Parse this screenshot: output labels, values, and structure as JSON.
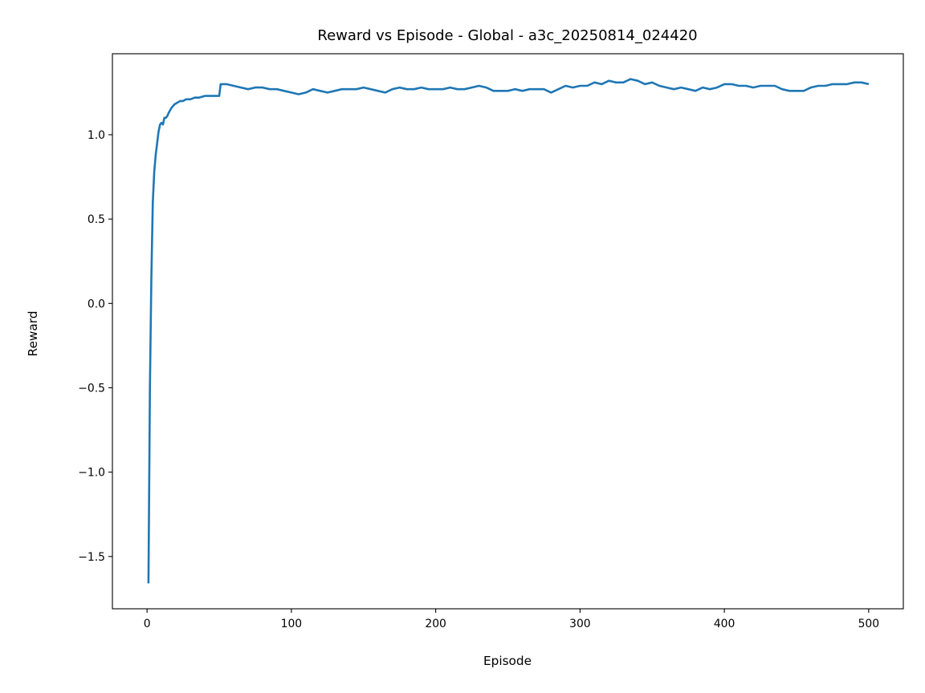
{
  "chart_data": {
    "type": "line",
    "title": "Reward vs Episode - Global - a3c_20250814_024420",
    "xlabel": "Episode",
    "ylabel": "Reward",
    "xlim": [
      -24,
      524
    ],
    "ylim": [
      -1.81,
      1.48
    ],
    "xticks": [
      0,
      100,
      200,
      300,
      400,
      500
    ],
    "xtick_labels": [
      "0",
      "100",
      "200",
      "300",
      "400",
      "500"
    ],
    "yticks": [
      -1.5,
      -1.0,
      -0.5,
      0.0,
      0.5,
      1.0
    ],
    "ytick_labels": [
      "−1.5",
      "−1.0",
      "−0.5",
      "0.0",
      "0.5",
      "1.0"
    ],
    "grid": false,
    "series": [
      {
        "color": "#1f77b4",
        "x": [
          1,
          2,
          3,
          4,
          5,
          6,
          7,
          8,
          9,
          10,
          11,
          12,
          13,
          14,
          15,
          17,
          19,
          21,
          23,
          25,
          27,
          30,
          33,
          36,
          40,
          45,
          50,
          51,
          52,
          55,
          60,
          65,
          70,
          75,
          80,
          85,
          90,
          95,
          100,
          105,
          110,
          115,
          120,
          125,
          130,
          135,
          140,
          145,
          150,
          155,
          160,
          165,
          170,
          175,
          180,
          185,
          190,
          195,
          200,
          205,
          210,
          215,
          220,
          225,
          230,
          235,
          240,
          245,
          250,
          255,
          260,
          265,
          270,
          275,
          280,
          285,
          290,
          295,
          300,
          305,
          310,
          315,
          320,
          325,
          330,
          335,
          340,
          345,
          350,
          355,
          360,
          365,
          370,
          375,
          380,
          385,
          390,
          395,
          400,
          405,
          410,
          415,
          420,
          425,
          430,
          435,
          440,
          445,
          450,
          455,
          460,
          465,
          470,
          475,
          480,
          485,
          490,
          495,
          500
        ],
        "y": [
          -1.66,
          -0.5,
          0.15,
          0.6,
          0.78,
          0.88,
          0.95,
          1.02,
          1.06,
          1.07,
          1.06,
          1.1,
          1.1,
          1.11,
          1.13,
          1.16,
          1.18,
          1.19,
          1.2,
          1.2,
          1.21,
          1.21,
          1.22,
          1.22,
          1.23,
          1.23,
          1.23,
          1.3,
          1.3,
          1.3,
          1.29,
          1.28,
          1.27,
          1.28,
          1.28,
          1.27,
          1.27,
          1.26,
          1.25,
          1.24,
          1.25,
          1.27,
          1.26,
          1.25,
          1.26,
          1.27,
          1.27,
          1.27,
          1.28,
          1.27,
          1.26,
          1.25,
          1.27,
          1.28,
          1.27,
          1.27,
          1.28,
          1.27,
          1.27,
          1.27,
          1.28,
          1.27,
          1.27,
          1.28,
          1.29,
          1.28,
          1.26,
          1.26,
          1.26,
          1.27,
          1.26,
          1.27,
          1.27,
          1.27,
          1.25,
          1.27,
          1.29,
          1.28,
          1.29,
          1.29,
          1.31,
          1.3,
          1.32,
          1.31,
          1.31,
          1.33,
          1.32,
          1.3,
          1.31,
          1.29,
          1.28,
          1.27,
          1.28,
          1.27,
          1.26,
          1.28,
          1.27,
          1.28,
          1.3,
          1.3,
          1.29,
          1.29,
          1.28,
          1.29,
          1.29,
          1.29,
          1.27,
          1.26,
          1.26,
          1.26,
          1.28,
          1.29,
          1.29,
          1.3,
          1.3,
          1.3,
          1.31,
          1.31,
          1.3
        ]
      }
    ]
  }
}
